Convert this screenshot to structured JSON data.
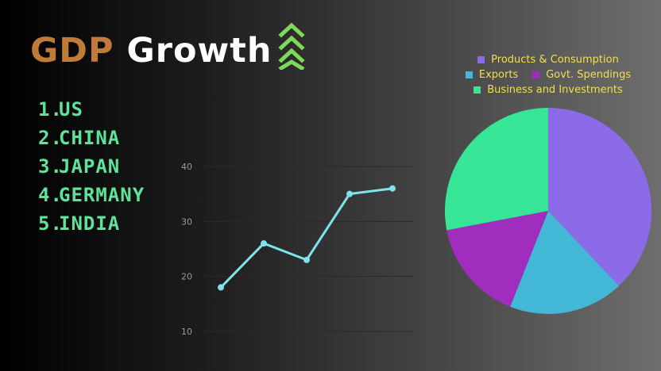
{
  "title": {
    "part1": "GDP",
    "part2": "Growth"
  },
  "ranking": [
    {
      "num": "1.",
      "name": "US"
    },
    {
      "num": "2.",
      "name": "CHINA"
    },
    {
      "num": "3.",
      "name": "JAPAN"
    },
    {
      "num": "4.",
      "name": "GERMANY"
    },
    {
      "num": "5.",
      "name": "INDIA"
    }
  ],
  "colors": {
    "gdp": "#c07a3a",
    "growth": "#ffffff",
    "ranking": "#5ee39a",
    "arrow": "#7ed957",
    "line": "#7ee3ea",
    "legend_text": "#f5df4d"
  },
  "icons": {
    "growth": "double-chevron-up-icon"
  },
  "chart_data": [
    {
      "type": "line",
      "x": [
        1,
        2,
        3,
        4,
        5
      ],
      "values": [
        18,
        26,
        23,
        35,
        36
      ],
      "yticks": [
        "40",
        "30",
        "20",
        "10"
      ],
      "ytick_values": [
        40,
        30,
        20,
        10
      ],
      "ylim": [
        10,
        40
      ],
      "xlim": [
        1,
        5
      ],
      "grid": true
    },
    {
      "type": "pie",
      "slices": [
        {
          "name": "Products & Consumption",
          "value": 38,
          "color": "#8c6be8"
        },
        {
          "name": "Exports",
          "value": 18,
          "color": "#42b7d6"
        },
        {
          "name": "Govt. Spendings",
          "value": 16,
          "color": "#a02dbd"
        },
        {
          "name": "Business and Investments",
          "value": 28,
          "color": "#37e596"
        }
      ],
      "legend_position": "top"
    }
  ]
}
